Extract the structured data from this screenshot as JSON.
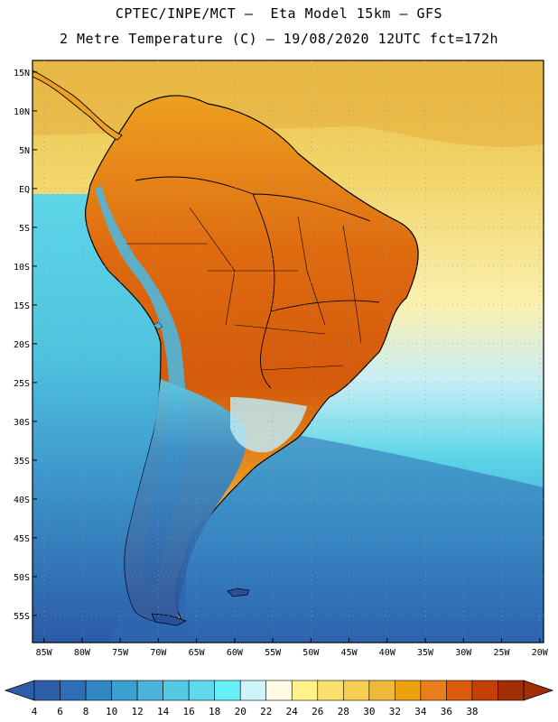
{
  "title": {
    "line1": "CPTEC/INPE/MCT –  Eta Model 15km – GFS",
    "line2": "2 Metre Temperature (C) – 19/08/2020 12UTC fct=172h"
  },
  "map": {
    "region": "South America",
    "lat_labels": [
      "15N",
      "10N",
      "5N",
      "EQ",
      "5S",
      "10S",
      "15S",
      "20S",
      "25S",
      "30S",
      "35S",
      "40S",
      "45S",
      "50S",
      "55S"
    ],
    "lon_labels": [
      "85W",
      "80W",
      "75W",
      "70W",
      "65W",
      "60W",
      "55W",
      "50W",
      "45W",
      "40W",
      "35W",
      "30W",
      "25W",
      "20W"
    ],
    "lat_range": [
      16.5,
      -58.5
    ],
    "lon_range": [
      -86.5,
      -19.5
    ],
    "ocean_gradient": [
      "#e8c14a",
      "#f2d56a",
      "#fbf0b0",
      "#c8eef6",
      "#5cd6e8",
      "#42a6d6",
      "#2a5aa8"
    ],
    "land_color_range": [
      "#e8841a",
      "#c84a08"
    ]
  },
  "colorbar": {
    "ticks": [
      "4",
      "6",
      "8",
      "10",
      "12",
      "14",
      "16",
      "18",
      "20",
      "22",
      "24",
      "26",
      "28",
      "30",
      "32",
      "34",
      "36",
      "38"
    ],
    "colors": [
      "#2d5fa8",
      "#2e6eb6",
      "#3286c4",
      "#3b9fcf",
      "#49b3d9",
      "#55c8e3",
      "#5fd9ec",
      "#66f0f7",
      "#ccf5f9",
      "#fffae6",
      "#fff28a",
      "#f9e06a",
      "#f5cf52",
      "#efba3a",
      "#eea10e",
      "#e87f1a",
      "#dc5a08",
      "#c64006",
      "#a22e04"
    ],
    "low_arrow_color": "#2d5fa8",
    "high_arrow_color": "#a22e04"
  }
}
